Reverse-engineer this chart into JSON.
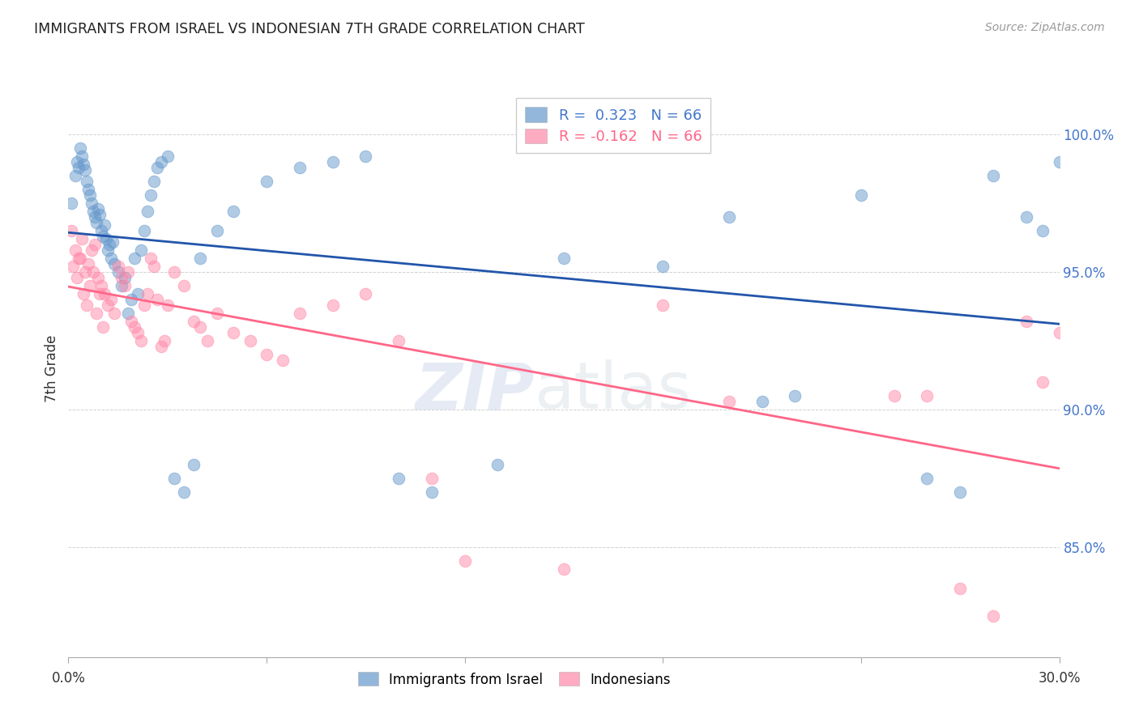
{
  "title": "IMMIGRANTS FROM ISRAEL VS INDONESIAN 7TH GRADE CORRELATION CHART",
  "source": "Source: ZipAtlas.com",
  "ylabel": "7th Grade",
  "x_range": [
    0.0,
    30.0
  ],
  "y_range": [
    81.0,
    102.0
  ],
  "y_ticks": [
    85.0,
    90.0,
    95.0,
    100.0
  ],
  "y_tick_labels": [
    "85.0%",
    "90.0%",
    "95.0%",
    "100.0%"
  ],
  "x_ticks": [
    0.0,
    6.0,
    12.0,
    18.0,
    24.0,
    30.0
  ],
  "legend_israel_R": "R =  0.323",
  "legend_israel_N": "N = 66",
  "legend_indonesian_R": "R = -0.162",
  "legend_indonesian_N": "N = 66",
  "israel_color": "#6699CC",
  "indonesian_color": "#FF88A8",
  "israel_line_color": "#2255AA",
  "indonesian_line_color": "#FF6688",
  "watermark_zip": "ZIP",
  "watermark_atlas": "atlas",
  "israel_x": [
    0.1,
    0.2,
    0.25,
    0.3,
    0.35,
    0.4,
    0.45,
    0.5,
    0.55,
    0.6,
    0.65,
    0.7,
    0.75,
    0.8,
    0.85,
    0.9,
    0.95,
    1.0,
    1.05,
    1.1,
    1.15,
    1.2,
    1.25,
    1.3,
    1.35,
    1.4,
    1.5,
    1.6,
    1.7,
    1.8,
    1.9,
    2.0,
    2.1,
    2.2,
    2.3,
    2.4,
    2.5,
    2.6,
    2.7,
    2.8,
    3.0,
    3.2,
    3.5,
    3.8,
    4.0,
    4.5,
    5.0,
    6.0,
    7.0,
    8.0,
    9.0,
    10.0,
    11.0,
    13.0,
    15.0,
    18.0,
    20.0,
    21.0,
    22.0,
    24.0,
    26.0,
    27.0,
    28.0,
    29.0,
    29.5,
    30.0
  ],
  "israel_y": [
    97.5,
    98.5,
    99.0,
    98.8,
    99.5,
    99.2,
    98.9,
    98.7,
    98.3,
    98.0,
    97.8,
    97.5,
    97.2,
    97.0,
    96.8,
    97.3,
    97.1,
    96.5,
    96.3,
    96.7,
    96.2,
    95.8,
    96.0,
    95.5,
    96.1,
    95.3,
    95.0,
    94.5,
    94.8,
    93.5,
    94.0,
    95.5,
    94.2,
    95.8,
    96.5,
    97.2,
    97.8,
    98.3,
    98.8,
    99.0,
    99.2,
    87.5,
    87.0,
    88.0,
    95.5,
    96.5,
    97.2,
    98.3,
    98.8,
    99.0,
    99.2,
    87.5,
    87.0,
    88.0,
    95.5,
    95.2,
    97.0,
    90.3,
    90.5,
    97.8,
    87.5,
    87.0,
    98.5,
    97.0,
    96.5,
    99.0
  ],
  "indonesian_x": [
    0.1,
    0.2,
    0.3,
    0.4,
    0.5,
    0.6,
    0.7,
    0.8,
    0.9,
    1.0,
    1.1,
    1.2,
    1.3,
    1.4,
    1.5,
    1.6,
    1.7,
    1.8,
    1.9,
    2.0,
    2.1,
    2.2,
    2.3,
    2.4,
    2.5,
    2.6,
    2.7,
    2.8,
    2.9,
    3.0,
    3.2,
    3.5,
    3.8,
    4.0,
    4.2,
    4.5,
    5.0,
    5.5,
    6.0,
    6.5,
    7.0,
    8.0,
    9.0,
    10.0,
    11.0,
    12.0,
    15.0,
    18.0,
    20.0,
    25.0,
    26.0,
    27.0,
    28.0,
    29.0,
    29.5,
    30.0,
    0.15,
    0.25,
    0.35,
    0.45,
    0.55,
    0.65,
    0.75,
    0.85,
    0.95,
    1.05
  ],
  "indonesian_y": [
    96.5,
    95.8,
    95.5,
    96.2,
    95.0,
    95.3,
    95.8,
    96.0,
    94.8,
    94.5,
    94.2,
    93.8,
    94.0,
    93.5,
    95.2,
    94.8,
    94.5,
    95.0,
    93.2,
    93.0,
    92.8,
    92.5,
    93.8,
    94.2,
    95.5,
    95.2,
    94.0,
    92.3,
    92.5,
    93.8,
    95.0,
    94.5,
    93.2,
    93.0,
    92.5,
    93.5,
    92.8,
    92.5,
    92.0,
    91.8,
    93.5,
    93.8,
    94.2,
    92.5,
    87.5,
    84.5,
    84.2,
    93.8,
    90.3,
    90.5,
    90.5,
    83.5,
    82.5,
    93.2,
    91.0,
    92.8,
    95.2,
    94.8,
    95.5,
    94.2,
    93.8,
    94.5,
    95.0,
    93.5,
    94.2,
    93.0
  ]
}
